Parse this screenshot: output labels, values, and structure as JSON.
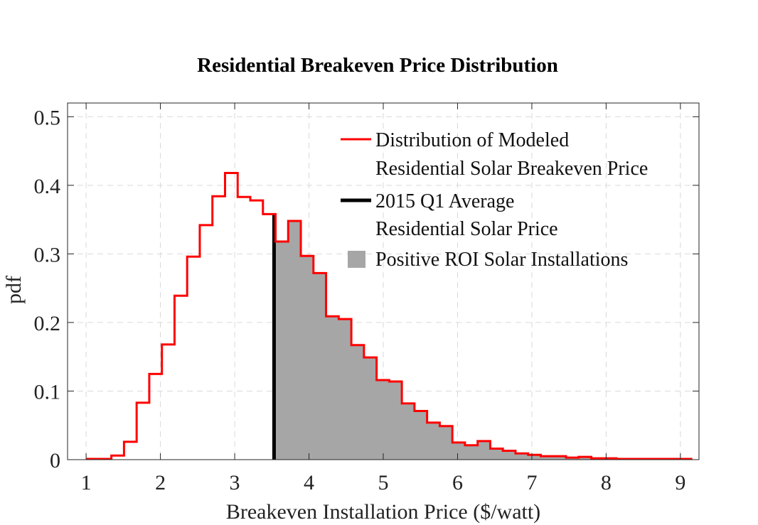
{
  "chart_data": {
    "type": "histogram",
    "title": "Residential Breakeven Price Distribution",
    "xlabel": "Breakeven Installation Price ($/watt)",
    "ylabel": "pdf",
    "xlim": [
      0.75,
      9.25
    ],
    "ylim": [
      0,
      0.52
    ],
    "xticks": [
      "1",
      "2",
      "3",
      "4",
      "5",
      "6",
      "7",
      "8",
      "9"
    ],
    "yticks": [
      "0",
      "0.1",
      "0.2",
      "0.3",
      "0.4",
      "0.5"
    ],
    "xtick_values": [
      1,
      2,
      3,
      4,
      5,
      6,
      7,
      8,
      9
    ],
    "ytick_values": [
      0,
      0.1,
      0.2,
      0.3,
      0.4,
      0.5
    ],
    "grid": true,
    "legend_position": "top-right",
    "bin_edges_start": 1.0,
    "bin_width": 0.17,
    "pdf_values": [
      0.001,
      0.001,
      0.006,
      0.026,
      0.083,
      0.125,
      0.168,
      0.239,
      0.296,
      0.342,
      0.384,
      0.418,
      0.383,
      0.378,
      0.358,
      0.318,
      0.348,
      0.297,
      0.272,
      0.209,
      0.205,
      0.167,
      0.149,
      0.116,
      0.114,
      0.082,
      0.071,
      0.054,
      0.049,
      0.025,
      0.021,
      0.027,
      0.016,
      0.013,
      0.009,
      0.007,
      0.005,
      0.005,
      0.003,
      0.004,
      0.002,
      0.002,
      0.001,
      0.001,
      0.001,
      0.001,
      0.001,
      0.001
    ],
    "average_price": 3.53,
    "colors": {
      "distribution": "#ff0000",
      "average_line": "#000000",
      "positive_fill": "#a6a6a6",
      "grid": "#d9d9d9",
      "axes": "#262626"
    },
    "legend": [
      {
        "key": "distribution",
        "line1": "Distribution of Modeled",
        "line2": "Residential Solar Breakeven Price"
      },
      {
        "key": "average",
        "line1": "2015 Q1 Average",
        "line2": "Residential Solar Price"
      },
      {
        "key": "positive",
        "line1": "Positive ROI Solar Installations",
        "line2": ""
      }
    ]
  }
}
